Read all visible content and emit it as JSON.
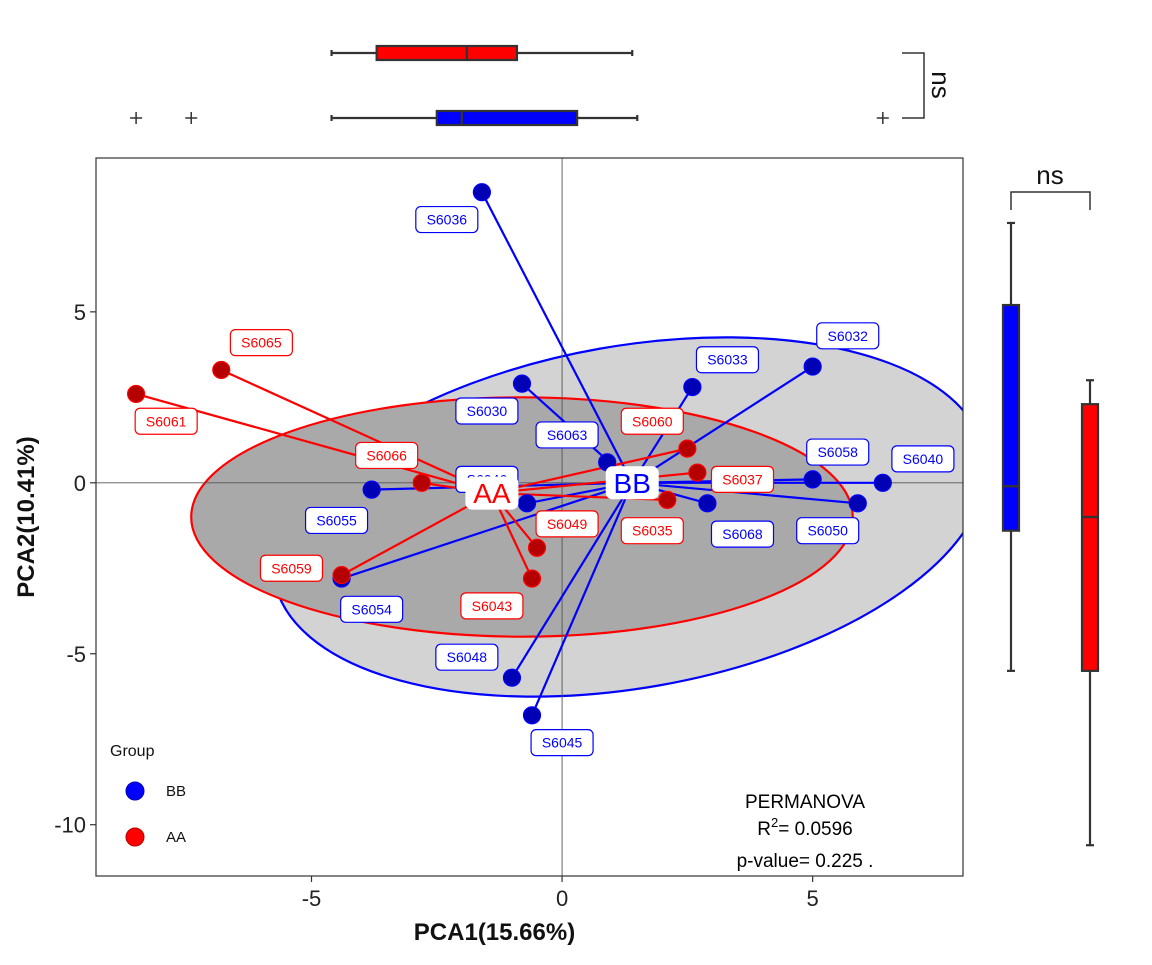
{
  "chart_data": {
    "type": "scatter",
    "xlabel": "PCA1(15.66%)",
    "ylabel": "PCA2(10.41%)",
    "xlim": [
      -9.3,
      8.0
    ],
    "ylim": [
      -11.5,
      9.5
    ],
    "x_ticks": [
      -5,
      0,
      5
    ],
    "y_ticks": [
      -10,
      -5,
      0,
      5
    ],
    "x_tick_labels": [
      "-5",
      "0",
      "5"
    ],
    "y_tick_labels": [
      "-10",
      "-5",
      "0",
      "5"
    ],
    "grid": false,
    "reference_lines": {
      "x": 0,
      "y": 0
    },
    "legend": {
      "title": "Group",
      "placement": "bottom-left",
      "entries": [
        {
          "label": "BB",
          "color": "#0000ff"
        },
        {
          "label": "AA",
          "color": "#ff0000"
        }
      ]
    },
    "series": [
      {
        "name": "BB",
        "color": "#0000ff",
        "centroid": {
          "x": 1.4,
          "y": 0.0,
          "label": "BB"
        },
        "ellipse": {
          "cx": 1.35,
          "cy": -1.0,
          "rx": 7.2,
          "ry": 5.0,
          "rotation_deg": 10,
          "fill": "#d3d3d3"
        },
        "points": [
          {
            "label": "S6036",
            "x": -1.6,
            "y": 8.5,
            "lx": -2.3,
            "ly": 7.7
          },
          {
            "label": "S6032",
            "x": 5.0,
            "y": 3.4,
            "lx": 5.7,
            "ly": 4.3
          },
          {
            "label": "S6033",
            "x": 2.6,
            "y": 2.8,
            "lx": 3.3,
            "ly": 3.6
          },
          {
            "label": "S6030",
            "x": -0.8,
            "y": 2.9,
            "lx": -1.5,
            "ly": 2.1
          },
          {
            "label": "S6063",
            "x": 0.9,
            "y": 0.6,
            "lx": 0.1,
            "ly": 1.4
          },
          {
            "label": "S6058",
            "x": 5.0,
            "y": 0.1,
            "lx": 5.5,
            "ly": 0.9
          },
          {
            "label": "S6040",
            "x": 6.4,
            "y": 0.0,
            "lx": 7.2,
            "ly": 0.7
          },
          {
            "label": "S6046",
            "x": -0.7,
            "y": -0.6,
            "lx": -1.5,
            "ly": 0.1
          },
          {
            "label": "S6055",
            "x": -3.8,
            "y": -0.2,
            "lx": -4.5,
            "ly": -1.1
          },
          {
            "label": "S6068",
            "x": 2.9,
            "y": -0.6,
            "lx": 3.6,
            "ly": -1.5
          },
          {
            "label": "S6050",
            "x": 5.9,
            "y": -0.6,
            "lx": 5.3,
            "ly": -1.4
          },
          {
            "label": "S6054",
            "x": -4.4,
            "y": -2.8,
            "lx": -3.8,
            "ly": -3.7
          },
          {
            "label": "S6048",
            "x": -1.0,
            "y": -5.7,
            "lx": -1.9,
            "ly": -5.1
          },
          {
            "label": "S6045",
            "x": -0.6,
            "y": -6.8,
            "lx": 0.0,
            "ly": -7.6
          }
        ]
      },
      {
        "name": "AA",
        "color": "#ff0000",
        "centroid": {
          "x": -1.4,
          "y": -0.3,
          "label": "AA"
        },
        "ellipse": {
          "cx": -0.8,
          "cy": -1.0,
          "rx": 6.6,
          "ry": 3.5,
          "rotation_deg": 0,
          "fill": "#a9a9a9"
        },
        "points": [
          {
            "label": "S6065",
            "x": -6.8,
            "y": 3.3,
            "lx": -6.0,
            "ly": 4.1
          },
          {
            "label": "S6061",
            "x": -8.5,
            "y": 2.6,
            "lx": -7.9,
            "ly": 1.8
          },
          {
            "label": "S6066",
            "x": -2.8,
            "y": 0.0,
            "lx": -3.5,
            "ly": 0.8
          },
          {
            "label": "S6060",
            "x": 2.5,
            "y": 1.0,
            "lx": 1.8,
            "ly": 1.8
          },
          {
            "label": "S6037",
            "x": 2.7,
            "y": 0.3,
            "lx": 3.6,
            "ly": 0.1
          },
          {
            "label": "S6035",
            "x": 2.1,
            "y": -0.5,
            "lx": 1.8,
            "ly": -1.4
          },
          {
            "label": "S6049",
            "x": -0.5,
            "y": -1.9,
            "lx": 0.1,
            "ly": -1.2
          },
          {
            "label": "S6043",
            "x": -0.6,
            "y": -2.8,
            "lx": -1.4,
            "ly": -3.6
          },
          {
            "label": "S6059",
            "x": -4.4,
            "y": -2.7,
            "lx": -5.4,
            "ly": -2.5
          }
        ]
      }
    ],
    "annotation": {
      "title": "PERMANOVA",
      "r2_prefix": "R",
      "r2_sup": "2",
      "r2_value": "= 0.0596",
      "p_value": "p-value= 0.225 ."
    },
    "marginal_top": {
      "axis": "PCA1",
      "significance": "ns",
      "boxes": [
        {
          "group": "AA",
          "color": "#ff0000",
          "whisker_low": -4.6,
          "q1": -3.7,
          "median": -1.9,
          "q3": -0.9,
          "whisker_high": 1.4,
          "outliers": []
        },
        {
          "group": "BB",
          "color": "#0000ff",
          "whisker_low": -4.6,
          "q1": -2.5,
          "median": -2.0,
          "q3": 0.3,
          "whisker_high": 1.5,
          "outliers": [
            -8.5,
            -7.4,
            6.4
          ]
        }
      ]
    },
    "marginal_right": {
      "axis": "PCA2",
      "significance": "ns",
      "boxes": [
        {
          "group": "BB",
          "color": "#0000ff",
          "whisker_low": -5.5,
          "q1": -1.4,
          "median": -0.1,
          "q3": 5.2,
          "whisker_high": 7.6,
          "outliers": []
        },
        {
          "group": "AA",
          "color": "#ff0000",
          "whisker_low": -10.6,
          "q1": -5.5,
          "median": -1.0,
          "q3": 2.3,
          "whisker_high": 3.0,
          "outliers": []
        }
      ]
    }
  }
}
